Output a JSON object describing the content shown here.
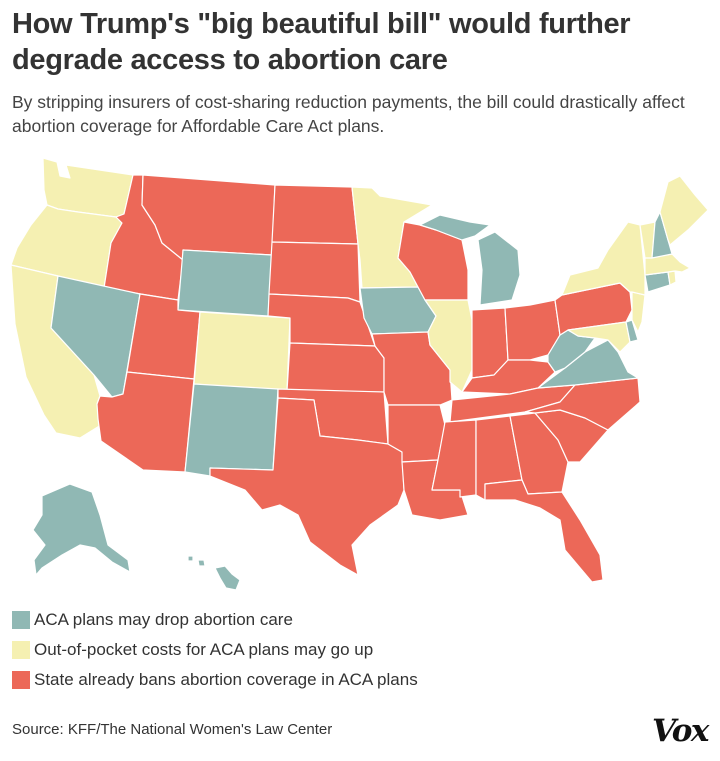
{
  "header": {
    "title": "How Trump's \"big beautiful bill\" would further degrade access to abortion care",
    "subtitle": "By stripping insurers of cost-sharing reduction payments, the bill could drastically affect abortion coverage for Affordable Care Act plans."
  },
  "colors": {
    "teal": "#90b8b4",
    "yellow": "#f5f0b2",
    "red": "#ec6858",
    "border": "#ffffff"
  },
  "legend": [
    {
      "label": "ACA plans may drop abortion care",
      "color": "#90b8b4"
    },
    {
      "label": "Out-of-pocket costs for ACA plans may go up",
      "color": "#f5f0b2"
    },
    {
      "label": "State already bans abortion coverage in ACA plans",
      "color": "#ec6858"
    }
  ],
  "map": {
    "type": "choropleth",
    "states": {
      "Alaska": "teal",
      "Hawaii": "teal",
      "Nevada": "teal",
      "Wyoming": "teal",
      "New Mexico": "teal",
      "Iowa": "teal",
      "Michigan": "teal",
      "Virginia": "teal",
      "West Virginia": "teal",
      "New Hampshire": "teal",
      "Connecticut": "teal",
      "Delaware": "teal",
      "Washington": "yellow",
      "Oregon": "yellow",
      "California": "yellow",
      "Colorado": "yellow",
      "Minnesota": "yellow",
      "Illinois": "yellow",
      "New York": "yellow",
      "Maine": "yellow",
      "Vermont": "yellow",
      "Massachusetts": "yellow",
      "New Jersey": "yellow",
      "Maryland": "yellow",
      "Rhode Island": "yellow",
      "Idaho": "red",
      "Montana": "red",
      "Utah": "red",
      "Arizona": "red",
      "North Dakota": "red",
      "South Dakota": "red",
      "Nebraska": "red",
      "Kansas": "red",
      "Oklahoma": "red",
      "Texas": "red",
      "Missouri": "red",
      "Arkansas": "red",
      "Louisiana": "red",
      "Wisconsin": "red",
      "Indiana": "red",
      "Ohio": "red",
      "Kentucky": "red",
      "Tennessee": "red",
      "Mississippi": "red",
      "Alabama": "red",
      "Georgia": "red",
      "Florida": "red",
      "South Carolina": "red",
      "North Carolina": "red",
      "Pennsylvania": "red"
    }
  },
  "footer": {
    "source": "Source: KFF/The National Women's Law Center",
    "logo": "Vox"
  }
}
